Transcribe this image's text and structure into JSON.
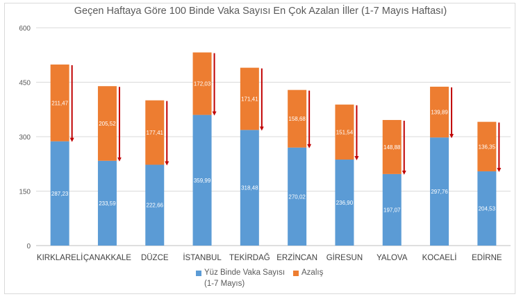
{
  "chart_data": {
    "type": "bar",
    "stacked": true,
    "title": "Geçen Haftaya Göre 100 Binde Vaka Sayısı En Çok Azalan İller (1-7 Mayıs Haftası)",
    "categories": [
      "KIRKLARELİ",
      "ÇANAKKALE",
      "DÜZCE",
      "İSTANBUL",
      "TEKİRDAĞ",
      "ERZİNCAN",
      "GİRESUN",
      "YALOVA",
      "KOCAELİ",
      "EDİRNE"
    ],
    "series": [
      {
        "name_line1": "Yüz Binde Vaka Sayısı",
        "name_line2": "(1-7 Mayıs)",
        "color": "#5b9bd5",
        "values": [
          287.23,
          233.59,
          222.66,
          359.99,
          318.48,
          270.02,
          236.9,
          197.07,
          297.76,
          204.53
        ],
        "labels": [
          "287,23",
          "233,59",
          "222,66",
          "359,99",
          "318,48",
          "270,02",
          "236,90",
          "197,07",
          "297,76",
          "204,53"
        ]
      },
      {
        "name": "Azalış",
        "color": "#ed7d31",
        "values": [
          211.47,
          205.52,
          177.41,
          172.03,
          171.41,
          158.68,
          151.54,
          148.88,
          139.89,
          136.35
        ],
        "labels": [
          "211,47",
          "205,52",
          "177,41",
          "172,03",
          "171,41",
          "158,68",
          "151,54",
          "148,88",
          "139,89",
          "136,35"
        ]
      }
    ],
    "arrow_color": "#c00000",
    "ylim": [
      0,
      600
    ],
    "yticks": [
      0,
      150,
      300,
      450,
      600
    ],
    "grid": true,
    "legend": "bottom"
  }
}
